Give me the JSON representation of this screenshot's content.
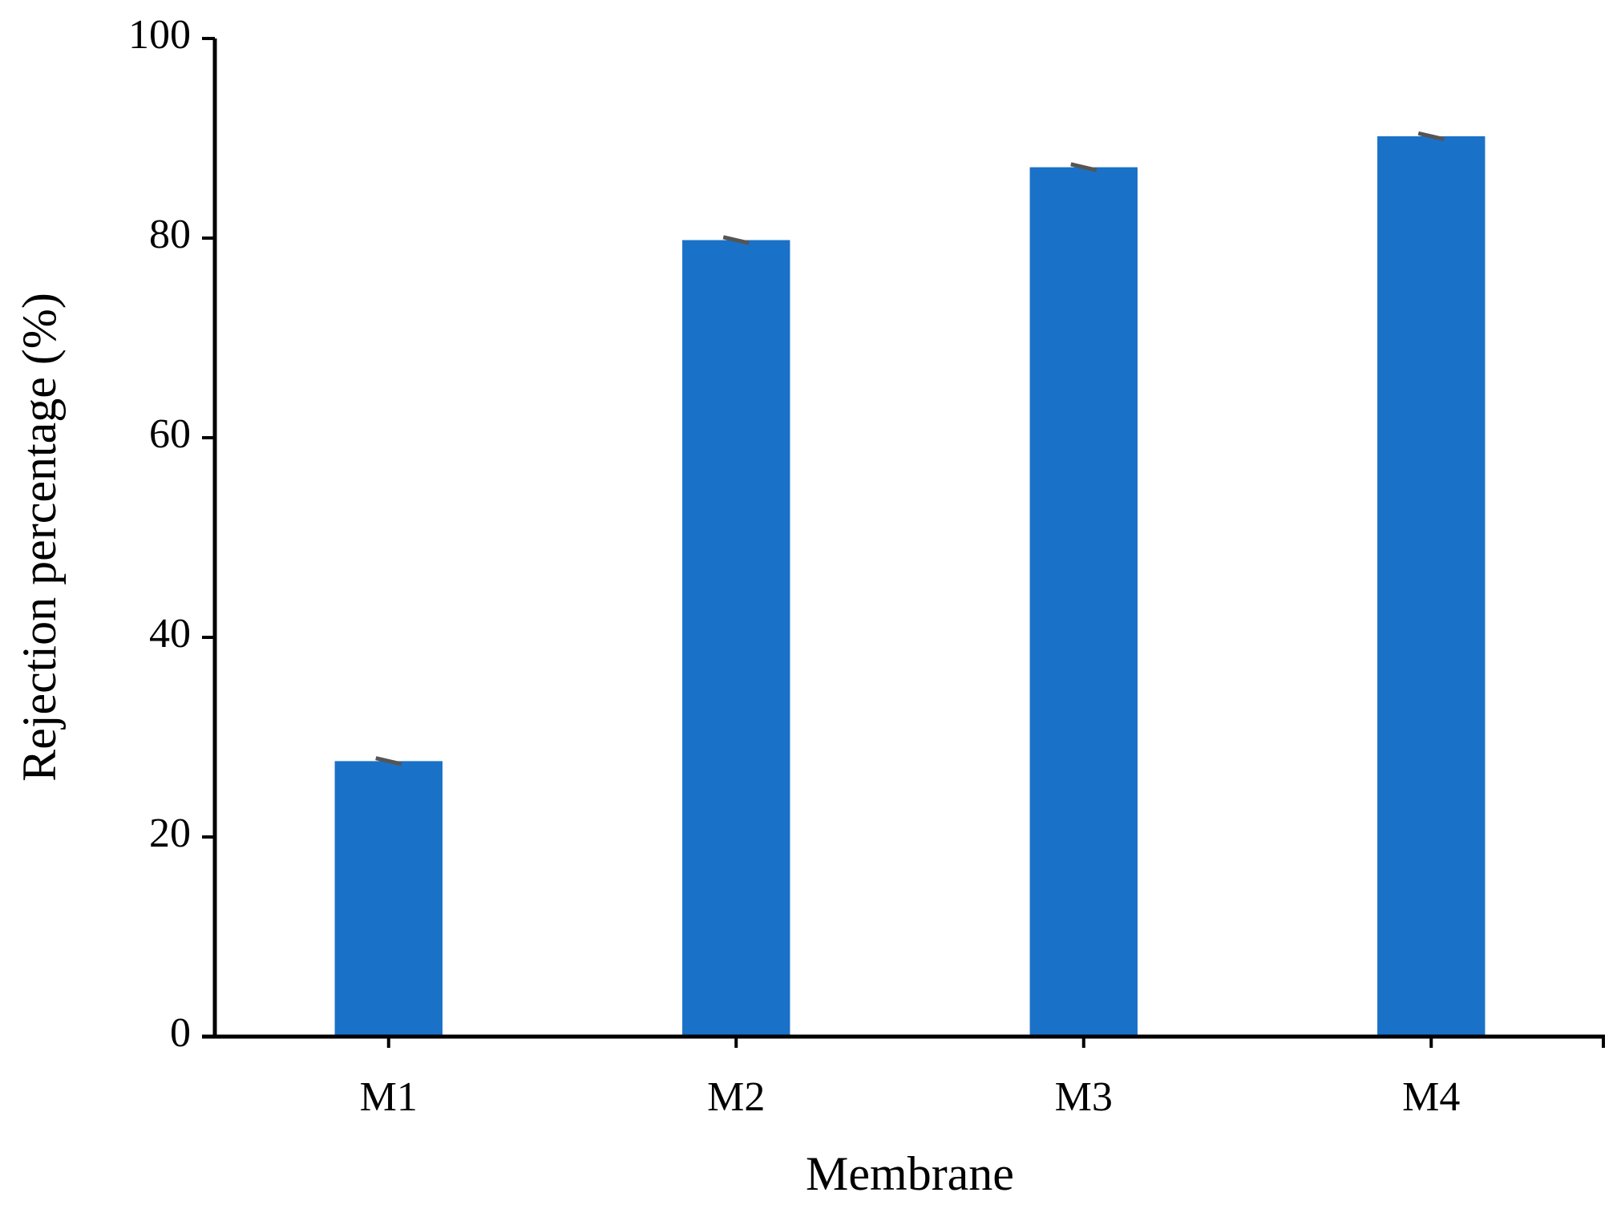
{
  "chart_data": {
    "type": "bar",
    "x_label": "Membrane",
    "y_label": "Rejection percentage (%)",
    "categories": [
      "M1",
      "M2",
      "M3",
      "M4"
    ],
    "values": [
      27.6,
      79.8,
      87.1,
      90.2
    ],
    "errors": [
      0.3,
      0.3,
      0.3,
      0.3
    ],
    "color": "#1a71c8",
    "error_color": "#555555",
    "ylim": [
      0,
      100
    ],
    "yticks": [
      0,
      20,
      40,
      60,
      80,
      100
    ],
    "grid": false
  }
}
